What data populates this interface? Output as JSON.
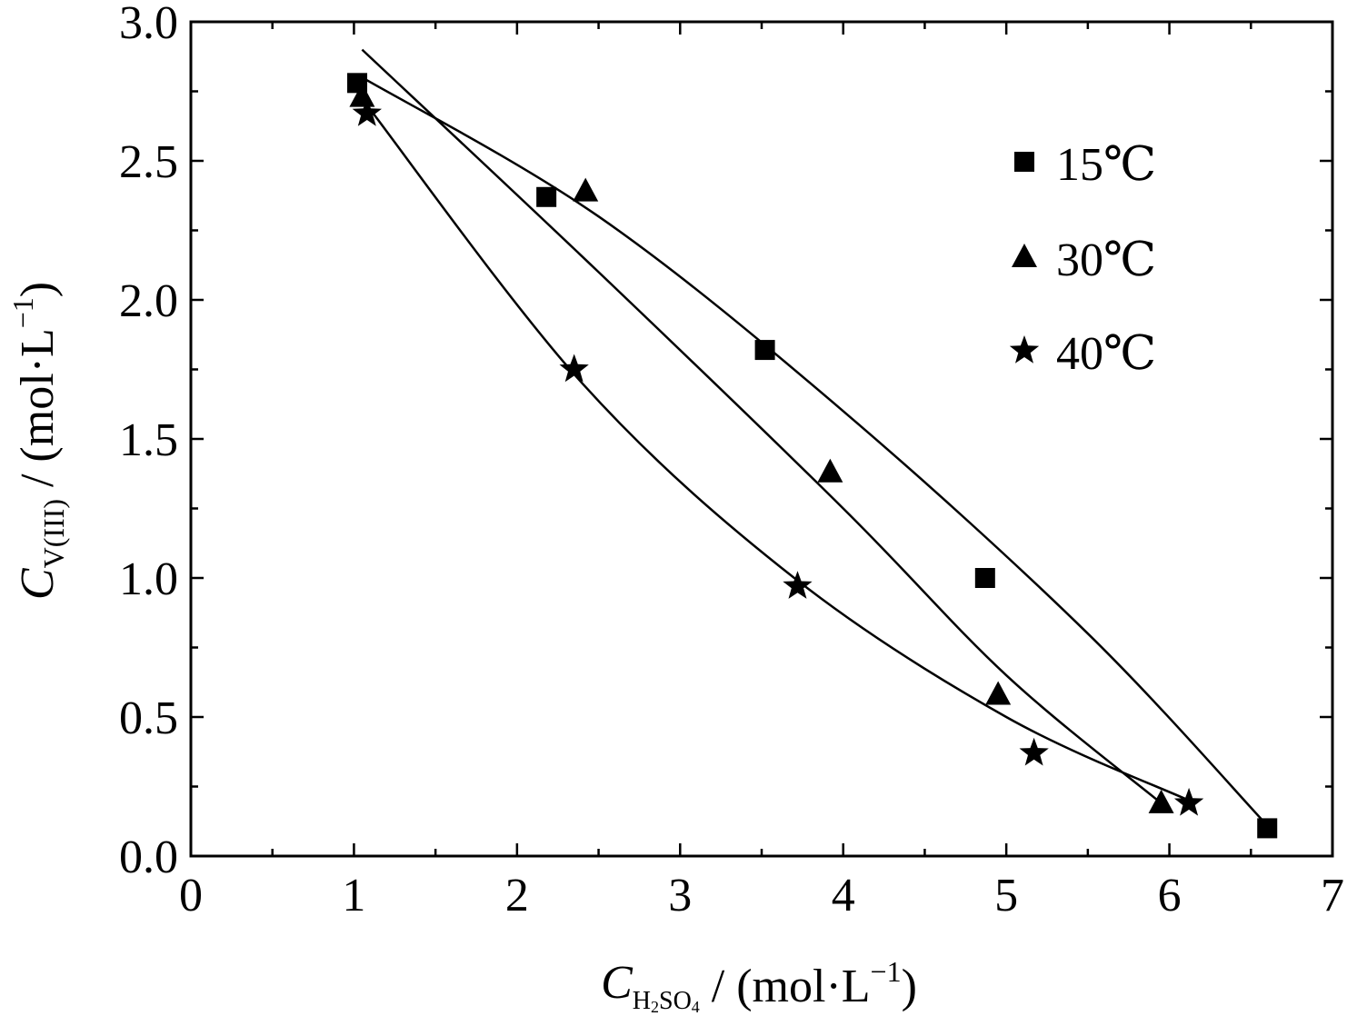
{
  "chart_data": {
    "type": "scatter",
    "xlabel": {
      "var": "C",
      "sub": "H2SO4",
      "sub_parts": [
        "H",
        "2",
        "SO",
        "4"
      ],
      "unit": " / (mol·L",
      "sup": "−1",
      "close": ")"
    },
    "ylabel": {
      "var": "C",
      "sub": "V(III)",
      "unit": " / (mol·L",
      "sup": "−1",
      "close": ")"
    },
    "xlim": [
      0,
      7
    ],
    "ylim": [
      0.0,
      3.0
    ],
    "xticks": [
      "0",
      "1",
      "2",
      "3",
      "4",
      "5",
      "6",
      "7"
    ],
    "yticks": [
      "0.0",
      "0.5",
      "1.0",
      "1.5",
      "2.0",
      "2.5",
      "3.0"
    ],
    "grid": false,
    "legend_position": "top-right",
    "series": [
      {
        "name": "15℃",
        "marker": "square",
        "points": [
          [
            1.02,
            2.78
          ],
          [
            2.18,
            2.37
          ],
          [
            3.52,
            1.82
          ],
          [
            4.87,
            1.0
          ],
          [
            6.6,
            0.1
          ]
        ],
        "fit": [
          [
            1.05,
            2.8
          ],
          [
            2.5,
            2.3
          ],
          [
            4.0,
            1.6
          ],
          [
            5.5,
            0.8
          ],
          [
            6.6,
            0.11
          ]
        ]
      },
      {
        "name": "30℃",
        "marker": "triangle",
        "points": [
          [
            1.05,
            2.73
          ],
          [
            2.42,
            2.39
          ],
          [
            3.92,
            1.38
          ],
          [
            4.95,
            0.58
          ],
          [
            5.95,
            0.19
          ]
        ],
        "fit": [
          [
            1.05,
            2.9
          ],
          [
            2.5,
            2.1
          ],
          [
            4.0,
            1.25
          ],
          [
            5.0,
            0.65
          ],
          [
            5.95,
            0.19
          ]
        ]
      },
      {
        "name": "40℃",
        "marker": "star",
        "points": [
          [
            1.08,
            2.67
          ],
          [
            2.35,
            1.75
          ],
          [
            3.72,
            0.97
          ],
          [
            5.17,
            0.37
          ],
          [
            6.12,
            0.19
          ]
        ],
        "fit": [
          [
            1.08,
            2.7
          ],
          [
            2.4,
            1.7
          ],
          [
            3.7,
            1.0
          ],
          [
            5.0,
            0.5
          ],
          [
            6.12,
            0.2
          ]
        ]
      }
    ]
  }
}
